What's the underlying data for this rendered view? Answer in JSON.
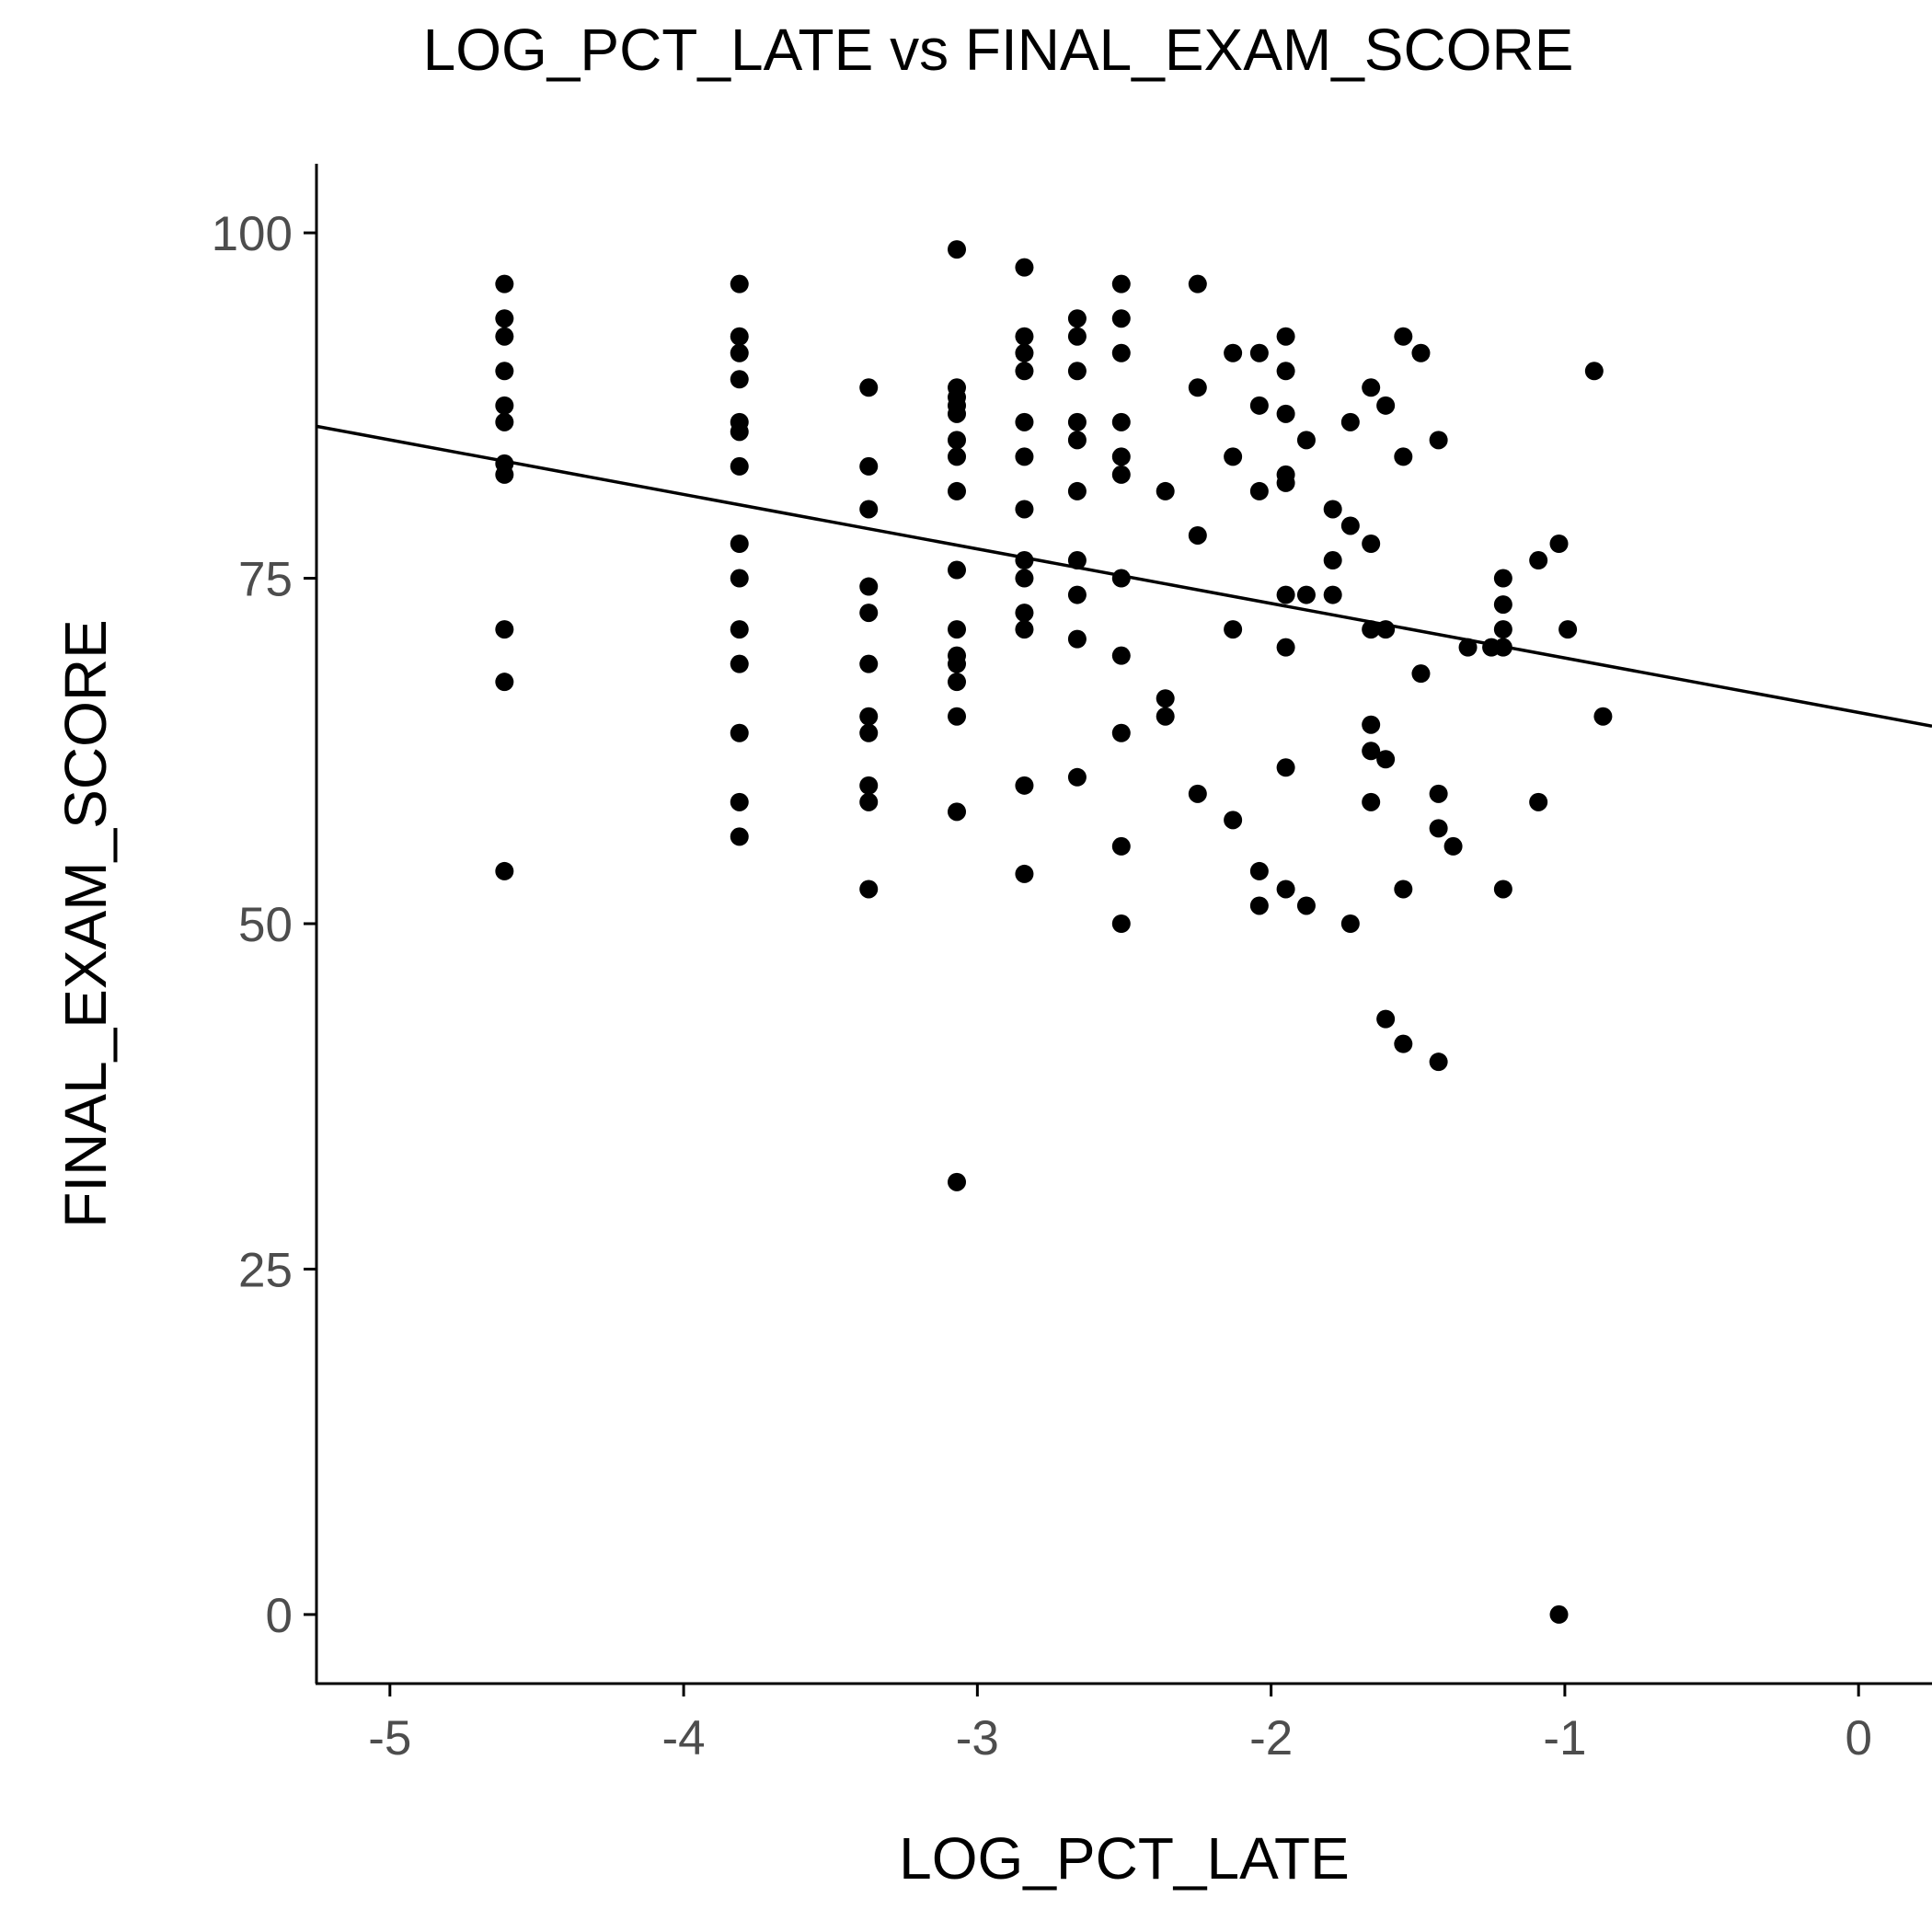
{
  "chart_data": {
    "type": "scatter",
    "title": "LOG_PCT_LATE vs FINAL_EXAM_SCORE",
    "xlabel": "LOG_PCT_LATE",
    "ylabel": "FINAL_EXAM_SCORE",
    "xlim": [
      -5.25,
      0.25
    ],
    "ylim": [
      -5,
      105
    ],
    "x_ticks": [
      -5,
      -4,
      -3,
      -2,
      -1,
      0
    ],
    "y_ticks": [
      0,
      25,
      50,
      75,
      100
    ],
    "grid": false,
    "legend": "none",
    "trend_line": {
      "x": [
        -5.25,
        0.25
      ],
      "y": [
        86,
        64.3
      ]
    },
    "points": [
      [
        -4.61,
        96.3
      ],
      [
        -4.61,
        93.8
      ],
      [
        -4.61,
        92.5
      ],
      [
        -4.61,
        90.0
      ],
      [
        -4.61,
        87.5
      ],
      [
        -4.61,
        86.3
      ],
      [
        -4.61,
        83.3
      ],
      [
        -4.61,
        82.5
      ],
      [
        -4.61,
        71.3
      ],
      [
        -4.61,
        67.5
      ],
      [
        -4.61,
        53.8
      ],
      [
        -3.81,
        96.3
      ],
      [
        -3.81,
        92.5
      ],
      [
        -3.81,
        91.3
      ],
      [
        -3.81,
        89.4
      ],
      [
        -3.81,
        86.3
      ],
      [
        -3.81,
        85.6
      ],
      [
        -3.81,
        83.1
      ],
      [
        -3.81,
        77.5
      ],
      [
        -3.81,
        75.0
      ],
      [
        -3.81,
        71.3
      ],
      [
        -3.81,
        68.8
      ],
      [
        -3.81,
        63.8
      ],
      [
        -3.81,
        58.8
      ],
      [
        -3.81,
        56.3
      ],
      [
        -3.37,
        88.8
      ],
      [
        -3.37,
        83.1
      ],
      [
        -3.37,
        80.0
      ],
      [
        -3.37,
        74.4
      ],
      [
        -3.37,
        72.5
      ],
      [
        -3.37,
        68.8
      ],
      [
        -3.37,
        65.0
      ],
      [
        -3.37,
        63.8
      ],
      [
        -3.37,
        60.0
      ],
      [
        -3.37,
        58.8
      ],
      [
        -3.37,
        52.5
      ],
      [
        -3.07,
        98.8
      ],
      [
        -3.07,
        88.8
      ],
      [
        -3.07,
        88.1
      ],
      [
        -3.07,
        87.5
      ],
      [
        -3.07,
        86.9
      ],
      [
        -3.07,
        85.0
      ],
      [
        -3.07,
        83.8
      ],
      [
        -3.07,
        81.3
      ],
      [
        -3.07,
        75.6
      ],
      [
        -3.07,
        71.3
      ],
      [
        -3.07,
        69.4
      ],
      [
        -3.07,
        68.8
      ],
      [
        -3.07,
        67.5
      ],
      [
        -3.07,
        65.0
      ],
      [
        -3.07,
        58.1
      ],
      [
        -3.07,
        31.3
      ],
      [
        -2.84,
        97.5
      ],
      [
        -2.84,
        92.5
      ],
      [
        -2.84,
        91.3
      ],
      [
        -2.84,
        90.0
      ],
      [
        -2.84,
        86.3
      ],
      [
        -2.84,
        83.8
      ],
      [
        -2.84,
        80.0
      ],
      [
        -2.84,
        76.3
      ],
      [
        -2.84,
        75.0
      ],
      [
        -2.84,
        72.5
      ],
      [
        -2.84,
        71.3
      ],
      [
        -2.84,
        60.0
      ],
      [
        -2.84,
        53.6
      ],
      [
        -2.66,
        93.8
      ],
      [
        -2.66,
        92.5
      ],
      [
        -2.66,
        90.0
      ],
      [
        -2.66,
        86.3
      ],
      [
        -2.66,
        85.0
      ],
      [
        -2.66,
        81.3
      ],
      [
        -2.66,
        76.3
      ],
      [
        -2.66,
        73.8
      ],
      [
        -2.66,
        70.6
      ],
      [
        -2.66,
        60.6
      ],
      [
        -2.51,
        96.3
      ],
      [
        -2.51,
        93.8
      ],
      [
        -2.51,
        91.3
      ],
      [
        -2.51,
        86.3
      ],
      [
        -2.51,
        83.8
      ],
      [
        -2.51,
        82.5
      ],
      [
        -2.51,
        75.0
      ],
      [
        -2.51,
        69.4
      ],
      [
        -2.51,
        63.8
      ],
      [
        -2.51,
        55.6
      ],
      [
        -2.51,
        50.0
      ],
      [
        -2.36,
        81.3
      ],
      [
        -2.36,
        66.3
      ],
      [
        -2.36,
        65.0
      ],
      [
        -2.25,
        96.3
      ],
      [
        -2.25,
        88.8
      ],
      [
        -2.25,
        78.1
      ],
      [
        -2.25,
        59.4
      ],
      [
        -2.13,
        91.3
      ],
      [
        -2.13,
        83.8
      ],
      [
        -2.13,
        71.3
      ],
      [
        -2.13,
        57.5
      ],
      [
        -2.04,
        91.3
      ],
      [
        -2.04,
        87.5
      ],
      [
        -2.04,
        81.3
      ],
      [
        -2.04,
        53.8
      ],
      [
        -2.04,
        51.3
      ],
      [
        -1.95,
        92.5
      ],
      [
        -1.95,
        90.0
      ],
      [
        -1.95,
        86.9
      ],
      [
        -1.95,
        82.5
      ],
      [
        -1.95,
        81.9
      ],
      [
        -1.95,
        73.8
      ],
      [
        -1.95,
        70.0
      ],
      [
        -1.95,
        61.3
      ],
      [
        -1.95,
        52.5
      ],
      [
        -1.88,
        85.0
      ],
      [
        -1.88,
        73.8
      ],
      [
        -1.88,
        51.3
      ],
      [
        -1.79,
        80.0
      ],
      [
        -1.79,
        76.3
      ],
      [
        -1.79,
        73.8
      ],
      [
        -1.73,
        86.3
      ],
      [
        -1.73,
        78.8
      ],
      [
        -1.73,
        50.0
      ],
      [
        -1.66,
        88.8
      ],
      [
        -1.66,
        77.5
      ],
      [
        -1.66,
        71.3
      ],
      [
        -1.66,
        64.4
      ],
      [
        -1.66,
        62.5
      ],
      [
        -1.66,
        58.8
      ],
      [
        -1.61,
        87.5
      ],
      [
        -1.61,
        71.3
      ],
      [
        -1.61,
        61.9
      ],
      [
        -1.61,
        43.1
      ],
      [
        -1.55,
        92.5
      ],
      [
        -1.55,
        83.8
      ],
      [
        -1.55,
        52.5
      ],
      [
        -1.55,
        41.3
      ],
      [
        -1.49,
        91.3
      ],
      [
        -1.49,
        68.1
      ],
      [
        -1.43,
        85.0
      ],
      [
        -1.43,
        59.4
      ],
      [
        -1.43,
        56.9
      ],
      [
        -1.43,
        40.0
      ],
      [
        -1.38,
        55.6
      ],
      [
        -1.33,
        70.0
      ],
      [
        -1.25,
        70.0
      ],
      [
        -1.21,
        75.0
      ],
      [
        -1.21,
        73.1
      ],
      [
        -1.21,
        71.3
      ],
      [
        -1.21,
        70.0
      ],
      [
        -1.21,
        52.5
      ],
      [
        -1.09,
        76.3
      ],
      [
        -1.09,
        58.8
      ],
      [
        -1.02,
        77.5
      ],
      [
        -1.02,
        0.0
      ],
      [
        -0.99,
        71.3
      ],
      [
        -0.9,
        90.0
      ],
      [
        -0.87,
        65.0
      ]
    ]
  }
}
